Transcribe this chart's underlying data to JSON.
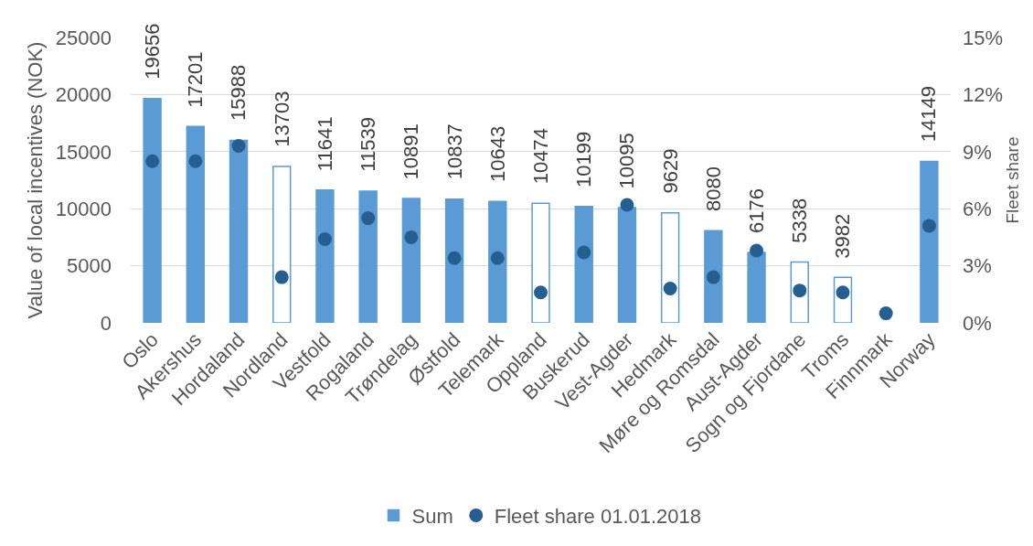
{
  "chart_data": {
    "type": "bar",
    "categories": [
      "Oslo",
      "Akershus",
      "Hordaland",
      "Nordland",
      "Vestfold",
      "Rogaland",
      "Trøndelag",
      "Østfold",
      "Telemark",
      "Oppland",
      "Buskerud",
      "Vest-Agder",
      "Hedmark",
      "Møre og Romsdal",
      "Aust-Agder",
      "Sogn og Fjordane",
      "Troms",
      "Finnmark",
      "Norway"
    ],
    "series": [
      {
        "name": "Sum",
        "color": "#5b9bd5",
        "colors": [
          "#5b9bd5",
          "#5b9bd5",
          "#5b9bd5",
          "#ffffff",
          "#5b9bd5",
          "#5b9bd5",
          "#5b9bd5",
          "#5b9bd5",
          "#5b9bd5",
          "#ffffff",
          "#5b9bd5",
          "#5b9bd5",
          "#ffffff",
          "#5b9bd5",
          "#5b9bd5",
          "#ffffff",
          "#ffffff",
          "#5b9bd5",
          "#5b9bd5"
        ],
        "values": [
          19656,
          17201,
          15988,
          13703,
          11641,
          11539,
          10891,
          10837,
          10643,
          10474,
          10199,
          10095,
          9629,
          8080,
          6176,
          5338,
          3982,
          null,
          14149
        ],
        "value_labels": [
          "19656",
          "17201",
          "15988",
          "13703",
          "11641",
          "11539",
          "10891",
          "10837",
          "10643",
          "10474",
          "10199",
          "10095",
          "9629",
          "8080",
          "6176",
          "5338",
          "3982",
          null,
          "14149"
        ]
      },
      {
        "name": "Fleet share 01.01.2018",
        "type": "scatter",
        "axis": "y2",
        "color": "#255e91",
        "values": [
          8.5,
          8.5,
          9.3,
          2.4,
          4.4,
          5.5,
          4.5,
          3.4,
          3.4,
          1.6,
          3.7,
          6.2,
          1.8,
          2.4,
          3.8,
          1.7,
          1.6,
          0.5,
          5.1
        ]
      }
    ],
    "ylabel": "Value of local incentives (NOK)",
    "y2label": "Fleet share",
    "ylim": [
      0,
      25000
    ],
    "yticks": [
      0,
      5000,
      10000,
      15000,
      20000,
      25000
    ],
    "y2lim": [
      0,
      15
    ],
    "y2ticks": [
      {
        "value": 0,
        "label": "0%"
      },
      {
        "value": 3,
        "label": "3%"
      },
      {
        "value": 6,
        "label": "6%"
      },
      {
        "value": 9,
        "label": "9%"
      },
      {
        "value": 12,
        "label": "12%"
      },
      {
        "value": 15,
        "label": "15%"
      }
    ],
    "grid": "y",
    "legend": "bottom",
    "marker": "circle"
  }
}
